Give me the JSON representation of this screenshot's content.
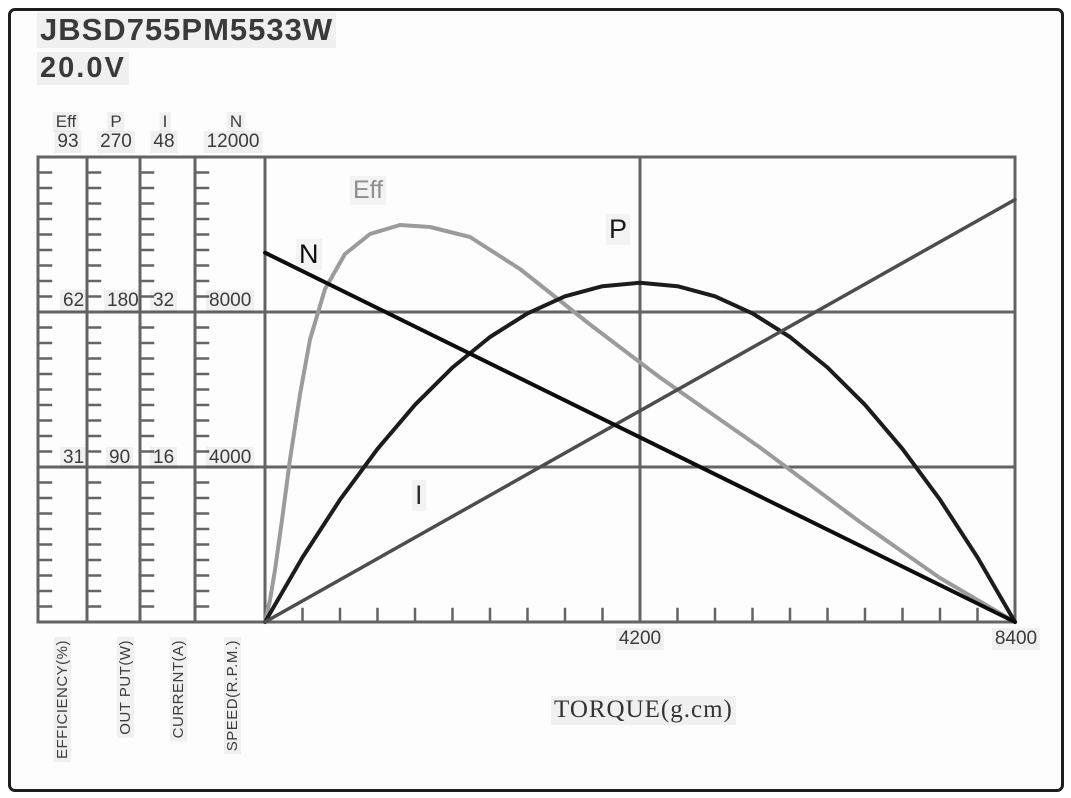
{
  "title": "JBSD755PM5533W",
  "voltage": "20.0V",
  "chart_data": {
    "type": "line",
    "title": "JBSD755PM5533W",
    "subtitle": "20.0V",
    "x_axis": {
      "label": "TORQUE(g.cm)",
      "range": [
        0,
        8400
      ],
      "tick_labels": [
        "4200",
        "8400"
      ],
      "major_ticks": [
        4200,
        8400
      ],
      "minor_tick_step": 420,
      "grid": true
    },
    "y_axes": [
      {
        "id": "eff",
        "name": "Eff",
        "label": "EFFICIENCY(%)",
        "range": [
          0,
          93
        ],
        "ticks": [
          31,
          62,
          93
        ]
      },
      {
        "id": "p",
        "name": "P",
        "label": "OUT PUT(W)",
        "range": [
          0,
          270
        ],
        "ticks": [
          90,
          180,
          270
        ]
      },
      {
        "id": "i",
        "name": "I",
        "label": "CURRENT(A)",
        "range": [
          0,
          48
        ],
        "ticks": [
          16,
          32,
          48
        ]
      },
      {
        "id": "n",
        "name": "N",
        "label": "SPEED(R.P.M.)",
        "range": [
          0,
          12000
        ],
        "ticks": [
          4000,
          8000,
          12000
        ]
      }
    ],
    "grid_color": "#646464",
    "legend_position": "none",
    "series": [
      {
        "name": "N",
        "axis": "n",
        "color": "#0d0d0d",
        "width": 4,
        "points": [
          [
            0,
            9530
          ],
          [
            8400,
            0
          ]
        ]
      },
      {
        "name": "I",
        "axis": "i",
        "color": "#4d4d4d",
        "width": 3.5,
        "points": [
          [
            0,
            0
          ],
          [
            8400,
            43.6
          ]
        ]
      },
      {
        "name": "P",
        "axis": "p",
        "color": "#1c1c1c",
        "width": 4,
        "points": [
          [
            0,
            0
          ],
          [
            420,
            37.5
          ],
          [
            840,
            71
          ],
          [
            1260,
            100.5
          ],
          [
            1680,
            126.1
          ],
          [
            2100,
            147.8
          ],
          [
            2520,
            165.5
          ],
          [
            2940,
            179.2
          ],
          [
            3360,
            189.1
          ],
          [
            3780,
            195
          ],
          [
            4200,
            197
          ],
          [
            4620,
            195
          ],
          [
            5040,
            189.1
          ],
          [
            5460,
            179.2
          ],
          [
            5880,
            165.5
          ],
          [
            6300,
            147.8
          ],
          [
            6720,
            126.1
          ],
          [
            7140,
            100.5
          ],
          [
            7560,
            71
          ],
          [
            7980,
            37.5
          ],
          [
            8400,
            0
          ]
        ]
      },
      {
        "name": "Eff",
        "axis": "eff",
        "color": "#9b9b9b",
        "width": 4,
        "points": [
          [
            0,
            0
          ],
          [
            56,
            4.4
          ],
          [
            112,
            10.4
          ],
          [
            190,
            20.4
          ],
          [
            280,
            32.5
          ],
          [
            392,
            45.5
          ],
          [
            504,
            56.5
          ],
          [
            672,
            66.6
          ],
          [
            896,
            73.6
          ],
          [
            1176,
            77.6
          ],
          [
            1512,
            79.4
          ],
          [
            1848,
            79
          ],
          [
            2296,
            77
          ],
          [
            2856,
            70.6
          ],
          [
            3640,
            59.5
          ],
          [
            4424,
            48.9
          ],
          [
            5544,
            34.9
          ],
          [
            6664,
            20
          ],
          [
            7560,
            8.8
          ],
          [
            8400,
            0
          ]
        ]
      }
    ]
  }
}
